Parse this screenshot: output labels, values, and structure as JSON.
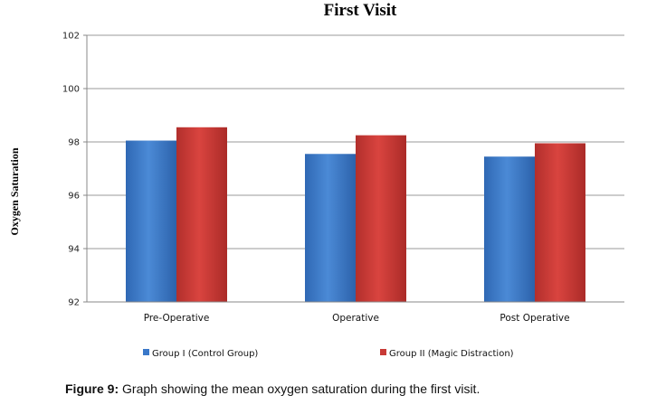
{
  "caption": {
    "label": "Figure 9:",
    "text": " Graph showing the mean oxygen saturation during the first visit."
  },
  "chart_data": {
    "type": "bar",
    "title": "First Visit",
    "xlabel": "",
    "ylabel": "Oxygen Saturation",
    "ylim": [
      92,
      102
    ],
    "yticks": [
      92,
      94,
      96,
      98,
      100,
      102
    ],
    "grid": true,
    "legend_position": "bottom",
    "categories": [
      "Pre-Operative",
      "Operative",
      "Post Operative"
    ],
    "series": [
      {
        "name": "Group I (Control Group)",
        "color": "#3a78c9",
        "values": [
          98.05,
          97.55,
          97.45
        ]
      },
      {
        "name": "Group II (Magic Distraction)",
        "color": "#c83a36",
        "values": [
          98.55,
          98.25,
          97.95
        ]
      }
    ]
  }
}
